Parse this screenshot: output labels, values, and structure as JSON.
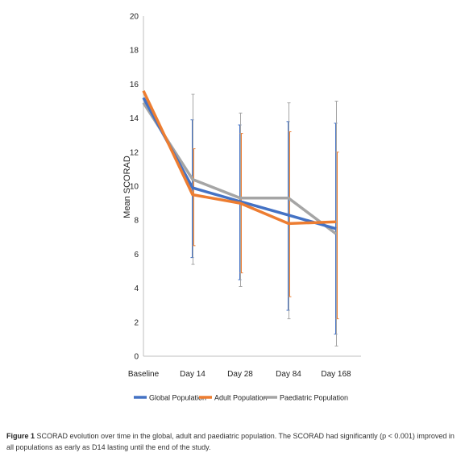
{
  "chart_data": {
    "type": "line",
    "categories": [
      "Baseline",
      "Day 14",
      "Day 28",
      "Day 84",
      "Day 168"
    ],
    "ylabel": "Mean SCORAD",
    "xlabel": "",
    "ylim": [
      0,
      20
    ],
    "yticks": [
      0,
      2,
      4,
      6,
      8,
      10,
      12,
      14,
      16,
      18,
      20
    ],
    "grid": false,
    "legend_position": "bottom",
    "series": [
      {
        "name": "Global Population",
        "color": "#4472C4",
        "values": [
          15.2,
          9.9,
          9.1,
          8.3,
          7.5
        ],
        "error_low": [
          null,
          5.8,
          4.5,
          2.7,
          1.3
        ],
        "error_high": [
          null,
          13.9,
          13.6,
          13.8,
          13.7
        ]
      },
      {
        "name": "Adult Population",
        "color": "#ED7D31",
        "values": [
          15.6,
          9.5,
          9.0,
          7.8,
          7.9
        ],
        "error_low": [
          null,
          6.5,
          4.9,
          3.5,
          2.2
        ],
        "error_high": [
          null,
          12.2,
          13.1,
          13.2,
          12.0
        ]
      },
      {
        "name": "Paediatric Population",
        "color": "#A5A5A5",
        "values": [
          14.9,
          10.4,
          9.3,
          9.3,
          7.2
        ],
        "error_low": [
          null,
          5.4,
          4.1,
          2.2,
          0.6
        ],
        "error_high": [
          null,
          15.4,
          14.3,
          14.9,
          15.0
        ]
      }
    ]
  },
  "caption": {
    "label": "Figure 1",
    "text": "SCORAD evolution over time in the global, adult and paediatric population. The SCORAD had significantly (p < 0.001) improved in all populations as early as D14 lasting until the end of the study."
  }
}
